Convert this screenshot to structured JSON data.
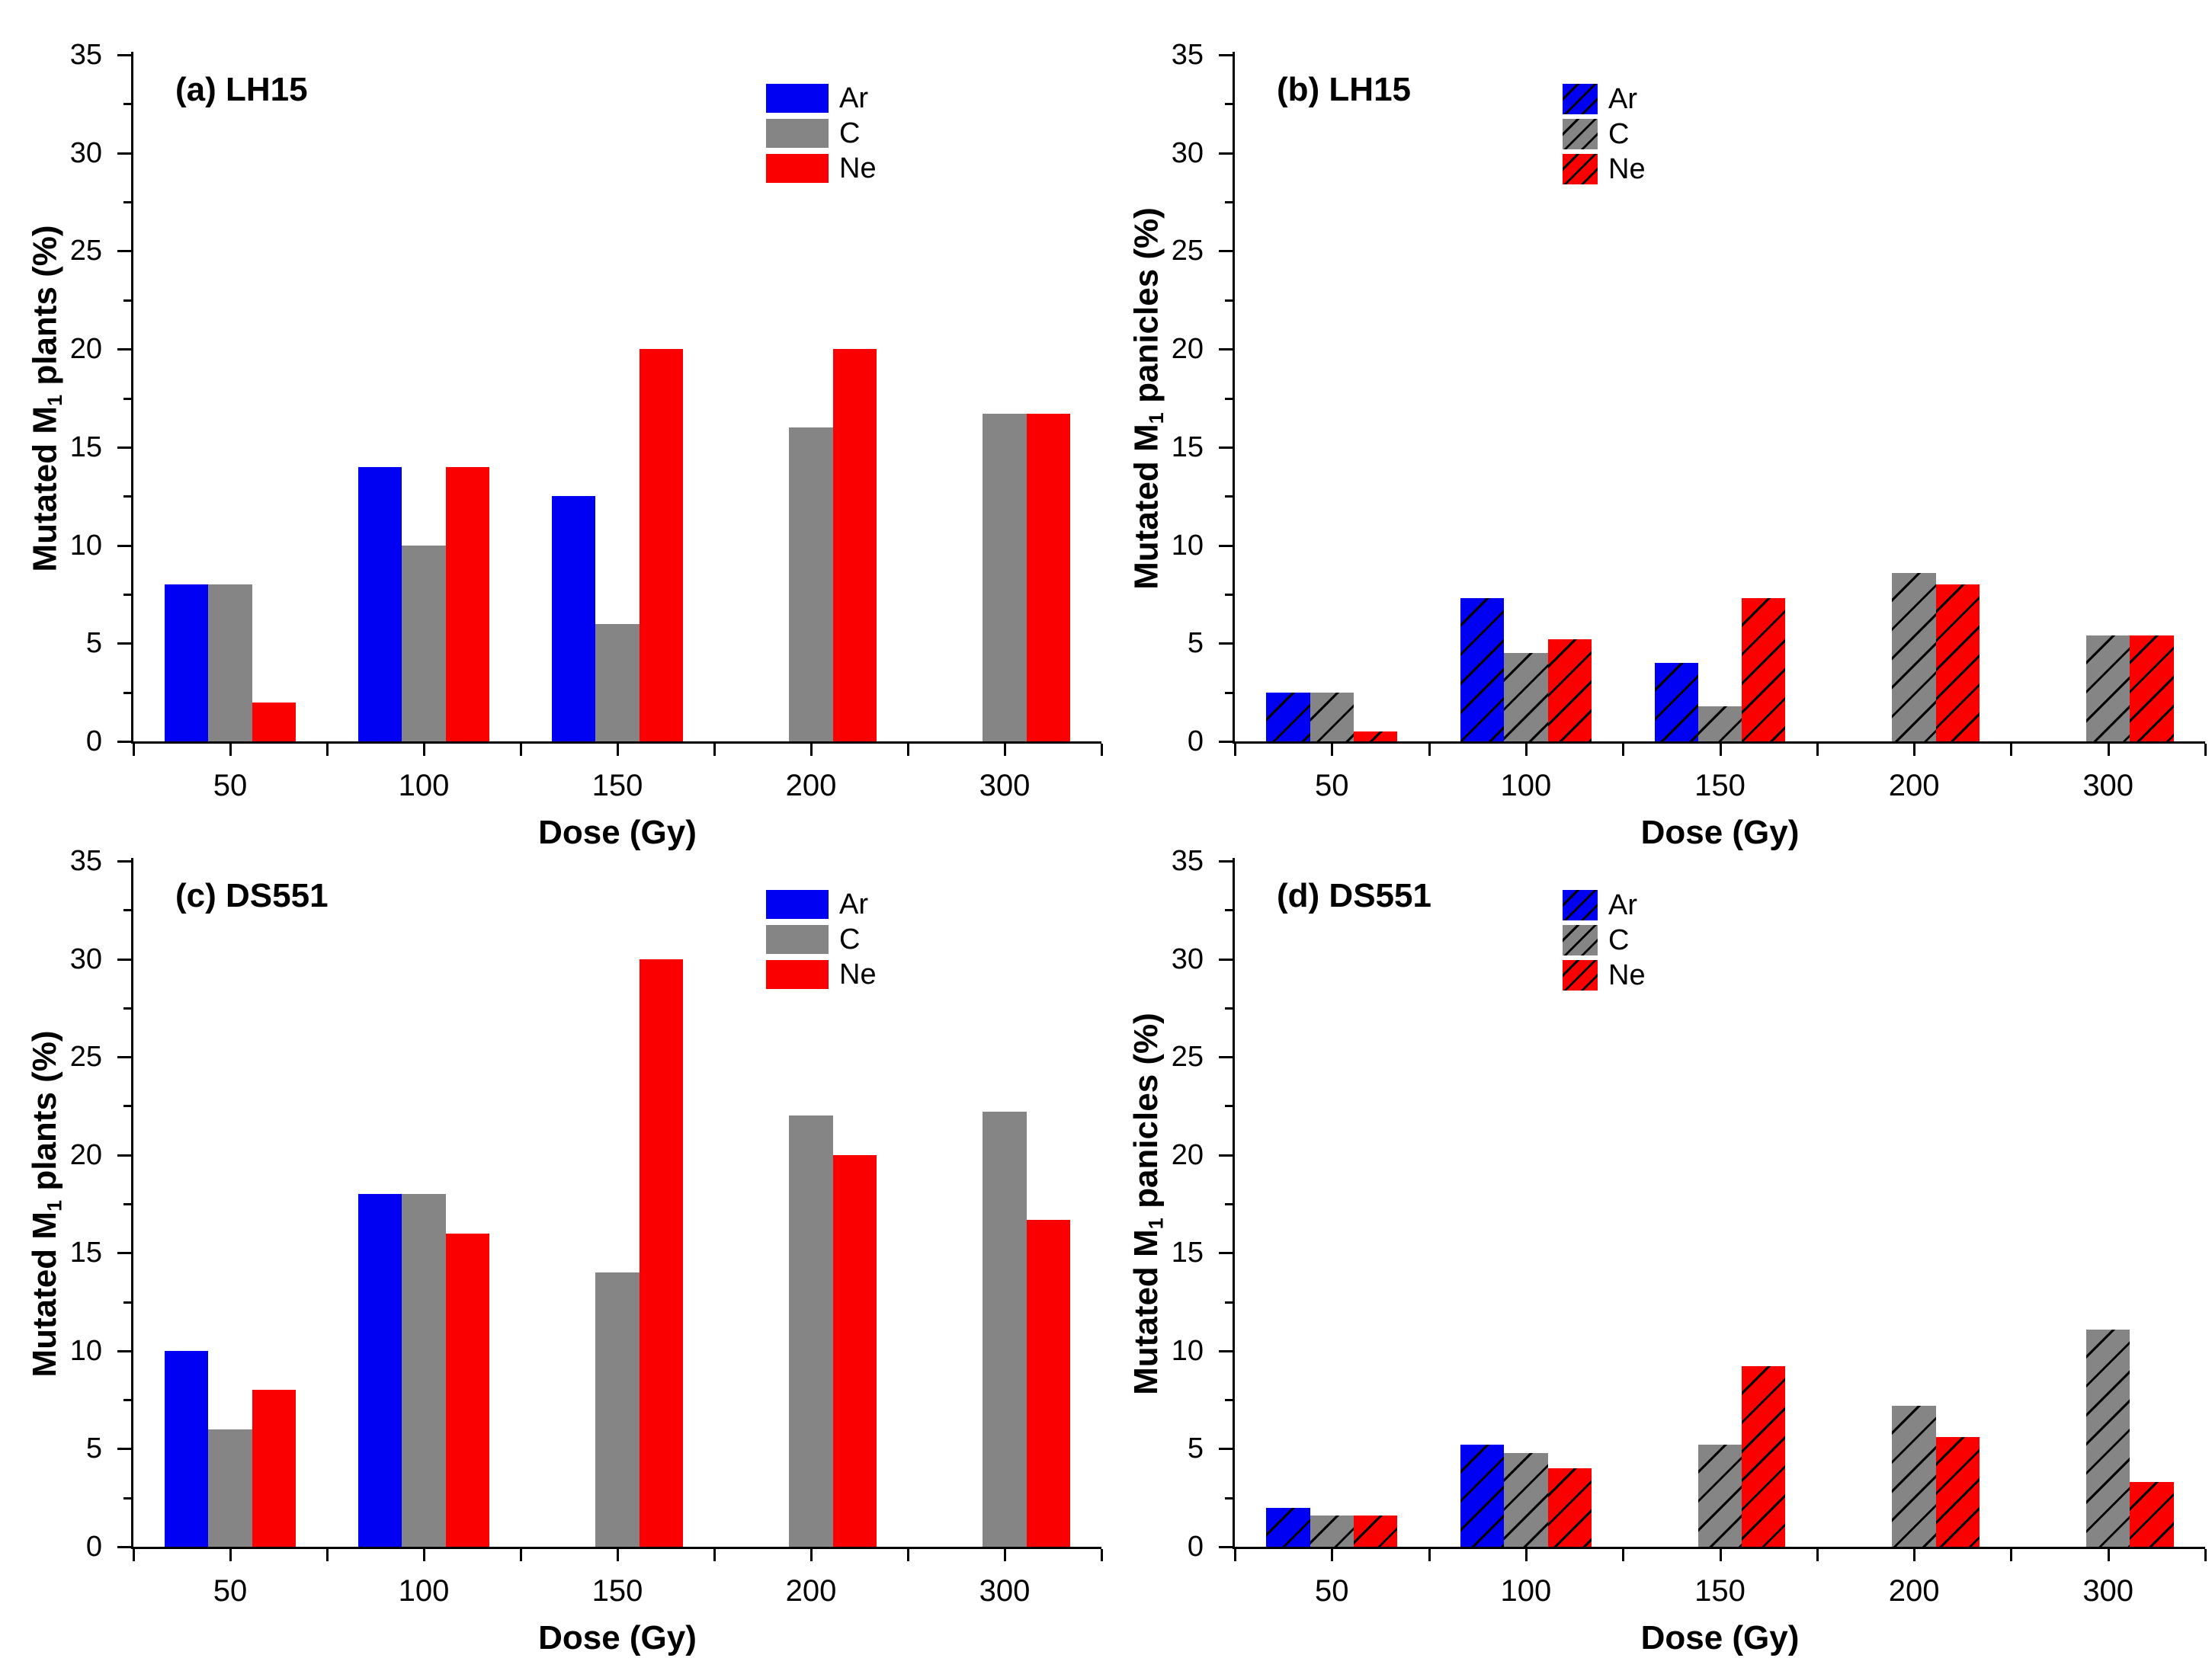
{
  "figure": {
    "background": "#ffffff",
    "text_color": "#000000",
    "series_colors": {
      "Ar": "#0000f2",
      "C": "#858585",
      "Ne": "#fb0000"
    },
    "hatch_color": "#000000"
  },
  "chart_data": [
    {
      "panel_id": "a",
      "type": "bar",
      "title_letter": "(a)",
      "title_name": "LH15",
      "xlabel": "Dose (Gy)",
      "ylabel_pre": "Mutated M",
      "ylabel_sub": "1",
      "ylabel_post": " plants (%)",
      "ylim": [
        0,
        35
      ],
      "ytick_step": 5,
      "ytick_minor_step": 2.5,
      "ytick_labels": [
        "0",
        "5",
        "10",
        "15",
        "20",
        "25",
        "30",
        "35"
      ],
      "grid": false,
      "legend_position": "inside-top-right",
      "hatched": false,
      "categories": [
        "50",
        "100",
        "150",
        "200",
        "300"
      ],
      "legend": [
        "Ar",
        "C",
        "Ne"
      ],
      "series": [
        {
          "name": "Ar",
          "color": "#0000f2",
          "values": [
            8,
            14,
            12.5,
            0,
            0
          ]
        },
        {
          "name": "C",
          "color": "#858585",
          "values": [
            8,
            10,
            6,
            16,
            16.7
          ]
        },
        {
          "name": "Ne",
          "color": "#fb0000",
          "values": [
            2,
            14,
            20,
            20,
            16.7
          ]
        }
      ]
    },
    {
      "panel_id": "b",
      "type": "bar",
      "title_letter": "(b)",
      "title_name": "LH15",
      "xlabel": "Dose (Gy)",
      "ylabel_pre": "Mutated M",
      "ylabel_sub": "1",
      "ylabel_post": " panicles (%)",
      "ylim": [
        0,
        35
      ],
      "ytick_step": 5,
      "ytick_minor_step": 2.5,
      "ytick_labels": [
        "0",
        "5",
        "10",
        "15",
        "20",
        "25",
        "30",
        "35"
      ],
      "grid": false,
      "legend_position": "inside-top-right",
      "hatched": true,
      "categories": [
        "50",
        "100",
        "150",
        "200",
        "300"
      ],
      "legend": [
        "Ar",
        "C",
        "Ne"
      ],
      "series": [
        {
          "name": "Ar",
          "color": "#0000f2",
          "values": [
            2.5,
            7.3,
            4.0,
            0,
            0
          ]
        },
        {
          "name": "C",
          "color": "#858585",
          "values": [
            2.5,
            4.5,
            1.8,
            8.6,
            5.4
          ]
        },
        {
          "name": "Ne",
          "color": "#fb0000",
          "values": [
            0.5,
            5.2,
            7.3,
            8.0,
            5.4
          ]
        }
      ]
    },
    {
      "panel_id": "c",
      "type": "bar",
      "title_letter": "(c)",
      "title_name": "DS551",
      "xlabel": "Dose (Gy)",
      "ylabel_pre": "Mutated M",
      "ylabel_sub": "1",
      "ylabel_post": " plants (%)",
      "ylim": [
        0,
        35
      ],
      "ytick_step": 5,
      "ytick_minor_step": 2.5,
      "ytick_labels": [
        "0",
        "5",
        "10",
        "15",
        "20",
        "25",
        "30",
        "35"
      ],
      "grid": false,
      "legend_position": "inside-top-right",
      "hatched": false,
      "categories": [
        "50",
        "100",
        "150",
        "200",
        "300"
      ],
      "legend": [
        "Ar",
        "C",
        "Ne"
      ],
      "series": [
        {
          "name": "Ar",
          "color": "#0000f2",
          "values": [
            10,
            18,
            0,
            0,
            0
          ]
        },
        {
          "name": "C",
          "color": "#858585",
          "values": [
            6,
            18,
            14,
            22,
            22.2
          ]
        },
        {
          "name": "Ne",
          "color": "#fb0000",
          "values": [
            8,
            16,
            30,
            20,
            16.7
          ]
        }
      ]
    },
    {
      "panel_id": "d",
      "type": "bar",
      "title_letter": "(d)",
      "title_name": "DS551",
      "xlabel": "Dose (Gy)",
      "ylabel_pre": "Mutated M",
      "ylabel_sub": "1",
      "ylabel_post": " panicles (%)",
      "ylim": [
        0,
        35
      ],
      "ytick_step": 5,
      "ytick_minor_step": 2.5,
      "ytick_labels": [
        "0",
        "5",
        "10",
        "15",
        "20",
        "25",
        "30",
        "35"
      ],
      "grid": false,
      "legend_position": "inside-top-right",
      "hatched": true,
      "categories": [
        "50",
        "100",
        "150",
        "200",
        "300"
      ],
      "legend": [
        "Ar",
        "C",
        "Ne"
      ],
      "series": [
        {
          "name": "Ar",
          "color": "#0000f2",
          "values": [
            2.0,
            5.2,
            0,
            0,
            0
          ]
        },
        {
          "name": "C",
          "color": "#858585",
          "values": [
            1.6,
            4.8,
            5.2,
            7.2,
            11.1
          ]
        },
        {
          "name": "Ne",
          "color": "#fb0000",
          "values": [
            1.6,
            4.0,
            9.2,
            5.6,
            3.3
          ]
        }
      ]
    }
  ]
}
